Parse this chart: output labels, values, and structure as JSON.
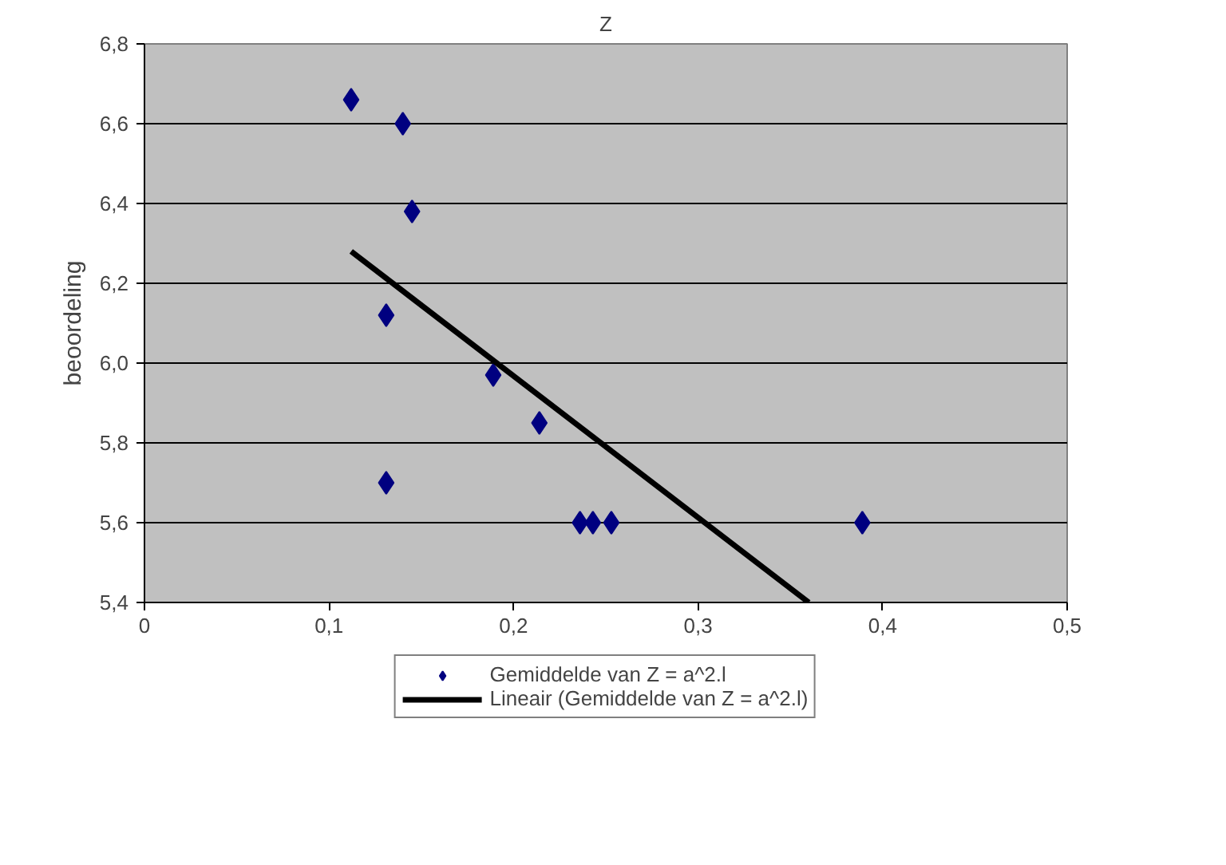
{
  "chart_data": {
    "type": "scatter",
    "title": "Z",
    "ylabel": "beoordeling",
    "series": [
      {
        "name": "Gemiddelde van Z = a^2.l",
        "color": "#000080",
        "marker": "diamond",
        "x": [
          0.112,
          0.14,
          0.145,
          0.131,
          0.189,
          0.214,
          0.131,
          0.236,
          0.243,
          0.253,
          0.389
        ],
        "values": [
          6.66,
          6.6,
          6.38,
          6.12,
          5.97,
          5.85,
          5.7,
          5.6,
          5.6,
          5.6,
          5.6
        ]
      },
      {
        "name": "Lineair (Gemiddelde van Z = a^2.l)",
        "type": "line",
        "color": "#000000",
        "marker": "none",
        "line_style": "solid",
        "x": [
          0.112,
          0.36
        ],
        "values": [
          6.28,
          5.4
        ]
      }
    ],
    "xlim": [
      0,
      0.5
    ],
    "xticks": [
      {
        "value": 0,
        "label": "0"
      },
      {
        "value": 0.1,
        "label": "0,1"
      },
      {
        "value": 0.2,
        "label": "0,2"
      },
      {
        "value": 0.3,
        "label": "0,3"
      },
      {
        "value": 0.4,
        "label": "0,4"
      },
      {
        "value": 0.5,
        "label": "0,5"
      }
    ],
    "ylim": [
      5.4,
      6.8
    ],
    "yticks": [
      {
        "value": 5.4,
        "label": "5,4"
      },
      {
        "value": 5.6,
        "label": "5,6"
      },
      {
        "value": 5.8,
        "label": "5,8"
      },
      {
        "value": 6.0,
        "label": "6,0"
      },
      {
        "value": 6.2,
        "label": "6,2"
      },
      {
        "value": 6.4,
        "label": "6,4"
      },
      {
        "value": 6.6,
        "label": "6,6"
      },
      {
        "value": 6.8,
        "label": "6,8"
      }
    ],
    "grid": "y",
    "legend": "bottom"
  }
}
